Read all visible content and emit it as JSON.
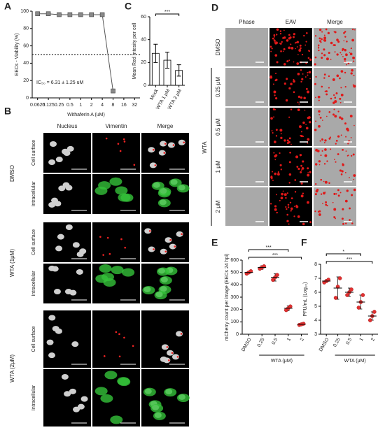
{
  "panel_labels": [
    "A",
    "B",
    "C",
    "D",
    "E",
    "F"
  ],
  "chart_data": [
    {
      "type": "line",
      "categories": [
        "0.0625",
        "0.125",
        "0.25",
        "0.5",
        "1",
        "2",
        "4",
        "8",
        "16",
        "32"
      ],
      "values": [
        97,
        97,
        96,
        96,
        96,
        96,
        96,
        8,
        null,
        null
      ],
      "color": "#888888",
      "ylim": [
        0,
        100
      ],
      "yticks": [
        0,
        20,
        40,
        60,
        80,
        100
      ],
      "y_label": "EECs - Viability (%)",
      "x_label": "Withaferin A (uM)",
      "reference_line": 50,
      "annotation": "IC₅₀ = 6.31 ± 1.25 uM"
    },
    {
      "type": "bar",
      "categories": [
        "Mock",
        "WTA 1 μM",
        "WTA 2 μM"
      ],
      "values": [
        28,
        22,
        13
      ],
      "errors": [
        8,
        7,
        5
      ],
      "color": "#ffffff",
      "ylim": [
        0,
        60
      ],
      "yticks": [
        0,
        20,
        40,
        60
      ],
      "y_label": "Mean Red Intesity per cell",
      "significance": [
        {
          "from": 0,
          "to": 2,
          "label": "***"
        }
      ]
    },
    {
      "type": "dot",
      "categories": [
        "DMSO",
        "0.25",
        "0.5",
        "1",
        "2"
      ],
      "values": [
        500,
        540,
        460,
        210,
        80
      ],
      "errors": [
        10,
        15,
        30,
        20,
        8
      ],
      "points": [
        [
          490,
          500,
          510
        ],
        [
          530,
          540,
          550
        ],
        [
          440,
          460,
          480
        ],
        [
          195,
          210,
          225
        ],
        [
          75,
          80,
          85
        ]
      ],
      "color": "#e03030",
      "ylim": [
        0,
        600
      ],
      "yticks": [
        0,
        100,
        200,
        300,
        400,
        500,
        600
      ],
      "y_label": "mCherry count per image (EECs 24 hpi)",
      "x_label": "WTA (μM)",
      "significance": [
        {
          "from": 0,
          "to": 3,
          "label": "***"
        },
        {
          "from": 0,
          "to": 4,
          "label": "***"
        }
      ]
    },
    {
      "type": "dot",
      "categories": [
        "DMSO",
        "0.25",
        "0.5",
        "1",
        "2"
      ],
      "values": [
        6.8,
        6.3,
        6.0,
        5.3,
        4.3
      ],
      "errors": [
        0.1,
        0.8,
        0.3,
        0.5,
        0.3
      ],
      "points": [
        [
          6.7,
          6.8,
          6.9
        ],
        [
          5.6,
          6.4,
          7.0
        ],
        [
          5.8,
          6.0,
          6.2
        ],
        [
          4.9,
          5.3,
          5.8
        ],
        [
          4.0,
          4.3,
          4.6
        ]
      ],
      "color": "#e03030",
      "ylim": [
        3,
        8
      ],
      "yticks": [
        3,
        4,
        5,
        6,
        7,
        8
      ],
      "y_label": "PFU/mL (Log₁₀)",
      "x_label": "WTA (μM)",
      "significance": [
        {
          "from": 0,
          "to": 3,
          "label": "*"
        },
        {
          "from": 0,
          "to": 4,
          "label": "***"
        }
      ]
    }
  ],
  "panel_b": {
    "columns": [
      "Nucleus",
      "Vimentin",
      "Merge"
    ],
    "groups": [
      {
        "label": "DMSO",
        "rows": [
          "Cell surface",
          "Intracellular"
        ]
      },
      {
        "label": "WTA (1μM)",
        "rows": [
          "Cell surface",
          "Intracellular"
        ]
      },
      {
        "label": "WTA (2μM)",
        "rows": [
          "Cell surface",
          "Intracellular"
        ]
      }
    ]
  },
  "panel_d": {
    "columns": [
      "Phase",
      "EAV",
      "Merge"
    ],
    "rows": [
      "DMSO",
      "0.25 μM",
      "0.5 μM",
      "1 μM",
      "2 μM"
    ],
    "group": "WTA"
  }
}
